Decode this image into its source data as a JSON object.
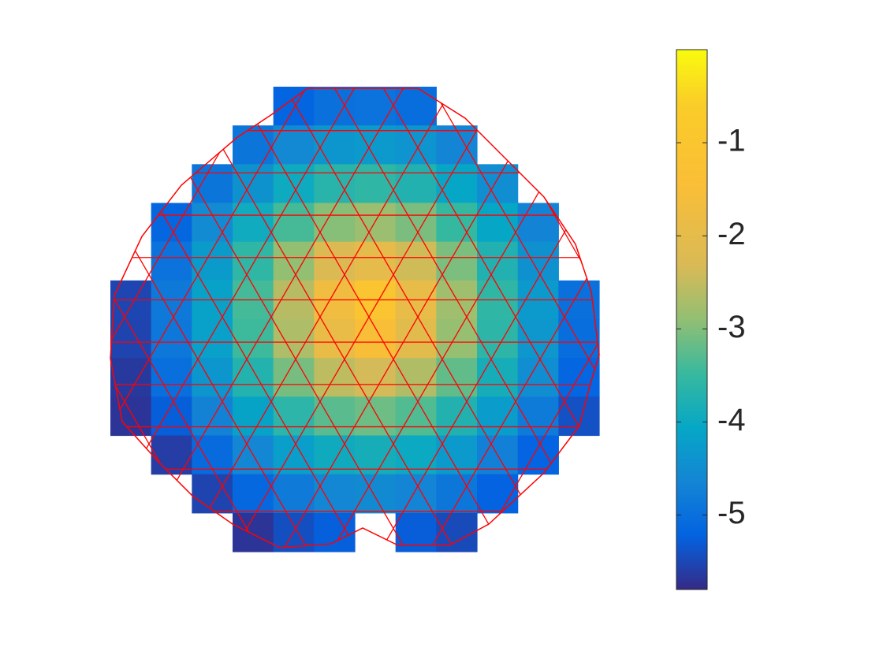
{
  "chart_data": {
    "type": "heatmap",
    "values": [
      [
        null,
        null,
        null,
        null,
        -5.18,
        -5.0,
        -4.95,
        -5.03,
        null,
        null,
        null,
        null
      ],
      [
        null,
        null,
        null,
        -4.92,
        -4.57,
        -4.35,
        -4.28,
        -4.39,
        -4.64,
        null,
        null,
        null
      ],
      [
        null,
        null,
        -4.92,
        -4.41,
        -3.97,
        -3.67,
        -3.58,
        -3.73,
        -4.06,
        -4.51,
        null,
        null
      ],
      [
        null,
        -5.16,
        -4.54,
        -3.94,
        -3.39,
        -2.97,
        -2.83,
        -3.05,
        -3.51,
        -4.07,
        -4.68,
        null
      ],
      [
        null,
        -4.95,
        -4.27,
        -3.58,
        -2.89,
        -2.27,
        -2.01,
        -2.39,
        -3.04,
        -3.74,
        -4.43,
        null
      ],
      [
        -5.52,
        -4.85,
        -4.14,
        -3.4,
        -2.6,
        -1.72,
        -1.06,
        -1.93,
        -2.79,
        -3.57,
        -4.3,
        -5.0
      ],
      [
        -5.54,
        -4.87,
        -4.17,
        -3.45,
        -2.68,
        -1.9,
        -1.47,
        -2.07,
        -2.86,
        -3.61,
        -4.33,
        -5.03
      ],
      [
        -5.65,
        -5.02,
        -4.37,
        -3.71,
        -3.07,
        -2.55,
        -2.36,
        -2.65,
        -3.21,
        -3.86,
        -4.51,
        -5.17
      ],
      [
        -5.7,
        -5.27,
        -4.69,
        -4.12,
        -3.62,
        -3.26,
        -3.14,
        -3.32,
        -3.73,
        -4.24,
        -4.81,
        -5.4
      ],
      [
        null,
        -5.61,
        -5.09,
        -4.61,
        -4.21,
        -3.95,
        -3.87,
        -4.0,
        -4.29,
        -4.72,
        -5.2,
        null
      ],
      [
        null,
        null,
        -5.54,
        -5.14,
        -4.82,
        -4.61,
        -4.55,
        -4.65,
        -4.88,
        -5.22,
        null,
        null
      ],
      [
        null,
        null,
        null,
        -5.7,
        -5.42,
        -5.25,
        null,
        -5.28,
        -5.47,
        null,
        null,
        null
      ]
    ],
    "clim": [
      -5.8,
      0
    ],
    "colorbar_ticks": [
      -1,
      -2,
      -3,
      -4,
      -5
    ],
    "colormap": "parula",
    "mesh_color": "#ff0000"
  }
}
